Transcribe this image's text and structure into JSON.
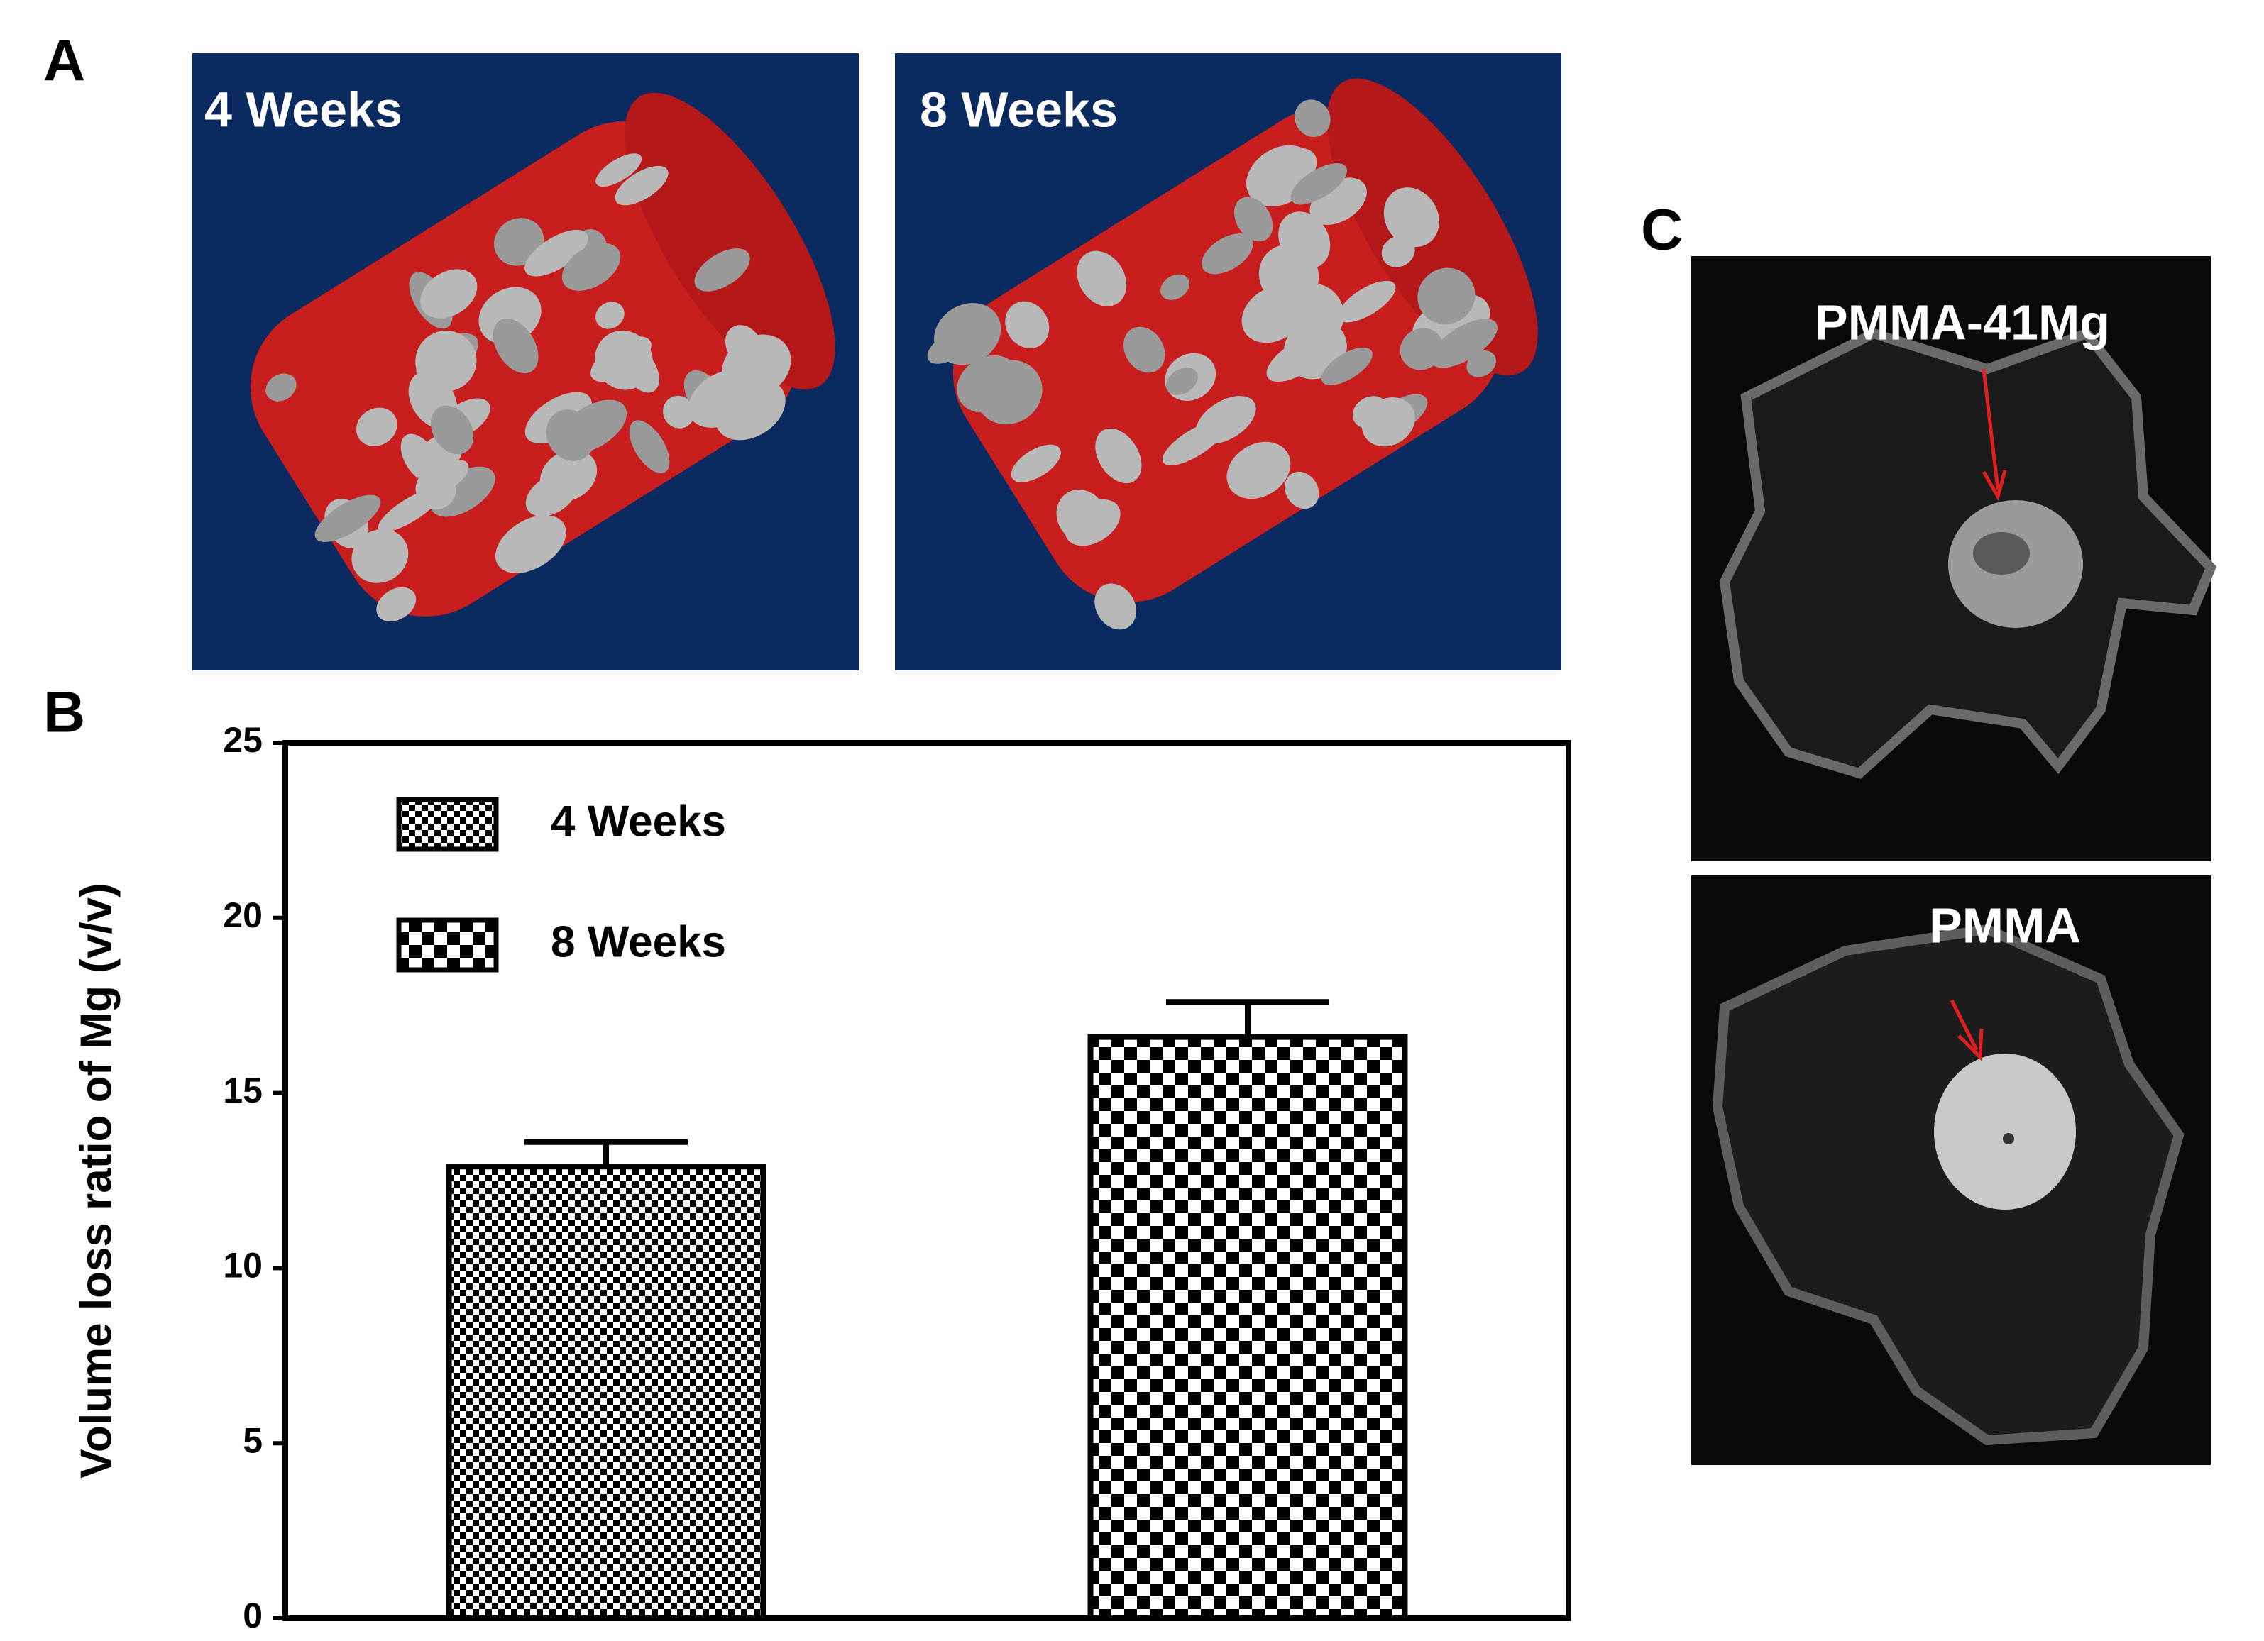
{
  "panels": {
    "a": {
      "letter": "A",
      "left_label": "4 Weeks",
      "right_label": "8 Weeks"
    },
    "c": {
      "letter": "C",
      "top_label": "PMMA-41Mg",
      "bottom_label": "PMMA"
    }
  },
  "chart_data": {
    "type": "bar",
    "letter": "B",
    "ylabel": "Volume loss ratio of Mg (v/v)",
    "categories": [
      null,
      null
    ],
    "series": [
      {
        "name": "4 Weeks",
        "pattern": "fine",
        "values": [
          12.9,
          null
        ],
        "errors": [
          0.7,
          null
        ]
      },
      {
        "name": "8 Weeks",
        "pattern": "coarse",
        "values": [
          null,
          16.6
        ],
        "errors": [
          null,
          1.0
        ]
      }
    ],
    "ylim": [
      0,
      25
    ],
    "yticks": [
      0,
      5,
      10,
      15,
      20,
      25
    ],
    "legend": "upper-left"
  }
}
